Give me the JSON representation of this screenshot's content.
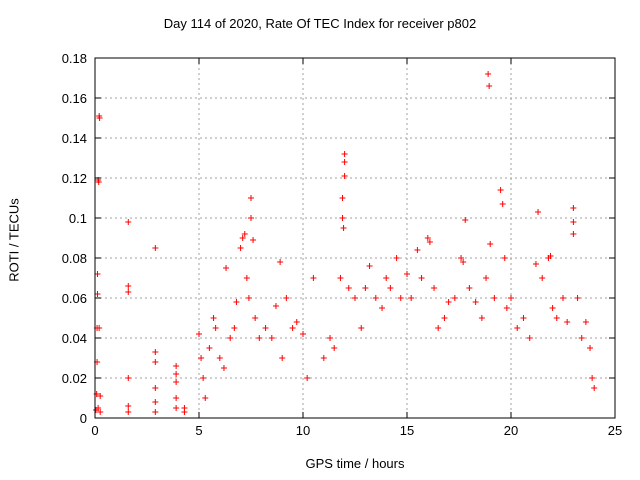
{
  "chart_data": {
    "type": "scatter",
    "title": "Day 114 of 2020, Rate Of TEC Index for receiver p802",
    "xlabel": "GPS time / hours",
    "ylabel": "ROTI / TECUs",
    "xlim": [
      0,
      25
    ],
    "ylim": [
      0,
      0.18
    ],
    "xticks": [
      0,
      5,
      10,
      15,
      20,
      25
    ],
    "xtick_labels": [
      "0",
      "5",
      "10",
      "15",
      "20",
      "25"
    ],
    "yticks": [
      0,
      0.02,
      0.04,
      0.06,
      0.08,
      0.1,
      0.12,
      0.14,
      0.16,
      0.18
    ],
    "ytick_labels": [
      "0",
      "0.02",
      "0.04",
      "0.06",
      "0.08",
      "0.1",
      "0.12",
      "0.14",
      "0.16",
      "0.18"
    ],
    "grid": true,
    "marker": "+",
    "color": "#ff0000",
    "series": [
      {
        "points": [
          [
            0.05,
            0.004
          ],
          [
            0.08,
            0.012
          ],
          [
            0.1,
            0.028
          ],
          [
            0.1,
            0.045
          ],
          [
            0.12,
            0.062
          ],
          [
            0.12,
            0.072
          ],
          [
            0.15,
            0.005
          ],
          [
            0.15,
            0.119
          ],
          [
            0.18,
            0.118
          ],
          [
            0.2,
            0.151
          ],
          [
            0.22,
            0.15
          ],
          [
            0.2,
            0.045
          ],
          [
            0.25,
            0.003
          ],
          [
            0.25,
            0.011
          ],
          [
            1.6,
            0.098
          ],
          [
            1.6,
            0.066
          ],
          [
            1.6,
            0.063
          ],
          [
            1.6,
            0.02
          ],
          [
            1.6,
            0.006
          ],
          [
            1.6,
            0.003
          ],
          [
            2.9,
            0.085
          ],
          [
            2.9,
            0.033
          ],
          [
            2.9,
            0.028
          ],
          [
            2.9,
            0.015
          ],
          [
            2.9,
            0.008
          ],
          [
            2.9,
            0.003
          ],
          [
            3.9,
            0.026
          ],
          [
            3.9,
            0.022
          ],
          [
            3.9,
            0.018
          ],
          [
            3.9,
            0.01
          ],
          [
            3.9,
            0.005
          ],
          [
            4.3,
            0.005
          ],
          [
            4.3,
            0.003
          ],
          [
            5.0,
            0.042
          ],
          [
            5.1,
            0.03
          ],
          [
            5.2,
            0.02
          ],
          [
            5.3,
            0.01
          ],
          [
            5.5,
            0.035
          ],
          [
            5.7,
            0.05
          ],
          [
            5.8,
            0.045
          ],
          [
            6.0,
            0.03
          ],
          [
            6.2,
            0.025
          ],
          [
            6.3,
            0.075
          ],
          [
            6.5,
            0.04
          ],
          [
            6.7,
            0.045
          ],
          [
            6.8,
            0.058
          ],
          [
            7.0,
            0.085
          ],
          [
            7.1,
            0.09
          ],
          [
            7.2,
            0.092
          ],
          [
            7.3,
            0.07
          ],
          [
            7.4,
            0.06
          ],
          [
            7.5,
            0.11
          ],
          [
            7.5,
            0.1
          ],
          [
            7.6,
            0.089
          ],
          [
            7.7,
            0.05
          ],
          [
            7.9,
            0.04
          ],
          [
            8.2,
            0.045
          ],
          [
            8.5,
            0.04
          ],
          [
            8.7,
            0.056
          ],
          [
            8.9,
            0.078
          ],
          [
            9.0,
            0.03
          ],
          [
            9.2,
            0.06
          ],
          [
            9.5,
            0.045
          ],
          [
            9.7,
            0.048
          ],
          [
            10.0,
            0.042
          ],
          [
            10.2,
            0.02
          ],
          [
            10.5,
            0.07
          ],
          [
            11.0,
            0.03
          ],
          [
            11.3,
            0.04
          ],
          [
            11.5,
            0.035
          ],
          [
            11.8,
            0.07
          ],
          [
            11.9,
            0.11
          ],
          [
            11.9,
            0.1
          ],
          [
            11.95,
            0.095
          ],
          [
            12.0,
            0.132
          ],
          [
            12.0,
            0.128
          ],
          [
            12.0,
            0.121
          ],
          [
            12.2,
            0.065
          ],
          [
            12.5,
            0.06
          ],
          [
            12.8,
            0.045
          ],
          [
            13.0,
            0.065
          ],
          [
            13.2,
            0.076
          ],
          [
            13.5,
            0.06
          ],
          [
            13.8,
            0.055
          ],
          [
            14.0,
            0.07
          ],
          [
            14.2,
            0.065
          ],
          [
            14.5,
            0.08
          ],
          [
            14.7,
            0.06
          ],
          [
            15.0,
            0.072
          ],
          [
            15.2,
            0.06
          ],
          [
            15.5,
            0.084
          ],
          [
            15.7,
            0.07
          ],
          [
            16.0,
            0.09
          ],
          [
            16.1,
            0.088
          ],
          [
            16.3,
            0.065
          ],
          [
            16.5,
            0.045
          ],
          [
            16.8,
            0.05
          ],
          [
            17.0,
            0.058
          ],
          [
            17.3,
            0.06
          ],
          [
            17.6,
            0.08
          ],
          [
            17.7,
            0.078
          ],
          [
            17.8,
            0.099
          ],
          [
            18.0,
            0.065
          ],
          [
            18.3,
            0.058
          ],
          [
            18.6,
            0.05
          ],
          [
            18.8,
            0.07
          ],
          [
            18.9,
            0.172
          ],
          [
            18.95,
            0.166
          ],
          [
            19.0,
            0.087
          ],
          [
            19.2,
            0.06
          ],
          [
            19.5,
            0.114
          ],
          [
            19.6,
            0.107
          ],
          [
            19.7,
            0.08
          ],
          [
            19.8,
            0.055
          ],
          [
            20.0,
            0.06
          ],
          [
            20.3,
            0.045
          ],
          [
            20.6,
            0.05
          ],
          [
            20.9,
            0.04
          ],
          [
            21.2,
            0.077
          ],
          [
            21.3,
            0.103
          ],
          [
            21.5,
            0.07
          ],
          [
            21.8,
            0.08
          ],
          [
            21.9,
            0.081
          ],
          [
            22.0,
            0.055
          ],
          [
            22.2,
            0.05
          ],
          [
            22.5,
            0.06
          ],
          [
            22.7,
            0.048
          ],
          [
            23.0,
            0.105
          ],
          [
            23.0,
            0.098
          ],
          [
            23.0,
            0.092
          ],
          [
            23.2,
            0.06
          ],
          [
            23.4,
            0.04
          ],
          [
            23.6,
            0.048
          ],
          [
            23.8,
            0.035
          ],
          [
            23.9,
            0.02
          ],
          [
            24.0,
            0.015
          ]
        ]
      }
    ]
  }
}
